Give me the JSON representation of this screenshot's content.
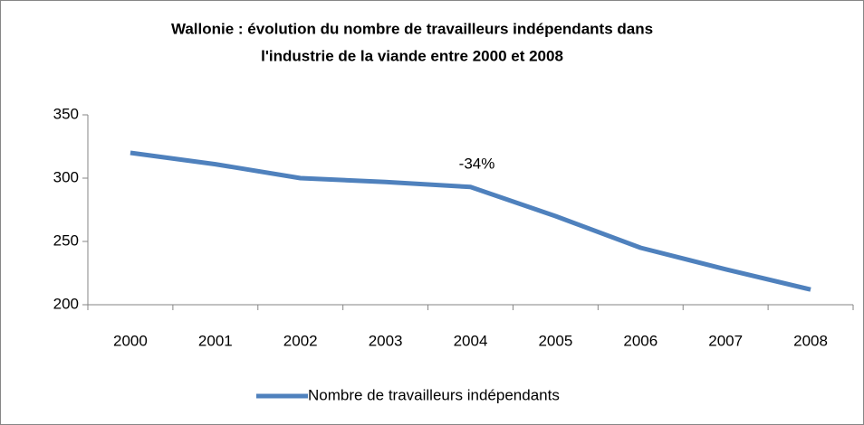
{
  "chart_data": {
    "type": "line",
    "title": [
      "Wallonie : évolution du nombre de travailleurs indépendants dans",
      "l'industrie de la viande entre 2000 et 2008"
    ],
    "categories": [
      "2000",
      "2001",
      "2002",
      "2003",
      "2004",
      "2005",
      "2006",
      "2007",
      "2008"
    ],
    "series": [
      {
        "name": "Nombre de travailleurs indépendants",
        "color": "#4f81bd",
        "values": [
          320,
          311,
          300,
          297,
          293,
          270,
          245,
          228,
          212
        ]
      }
    ],
    "annotations": [
      {
        "text": "-34%",
        "category": "2004"
      }
    ],
    "ylim": [
      200,
      350
    ],
    "yticks": [
      200,
      250,
      300,
      350
    ],
    "grid": false,
    "legend": "bottom"
  }
}
